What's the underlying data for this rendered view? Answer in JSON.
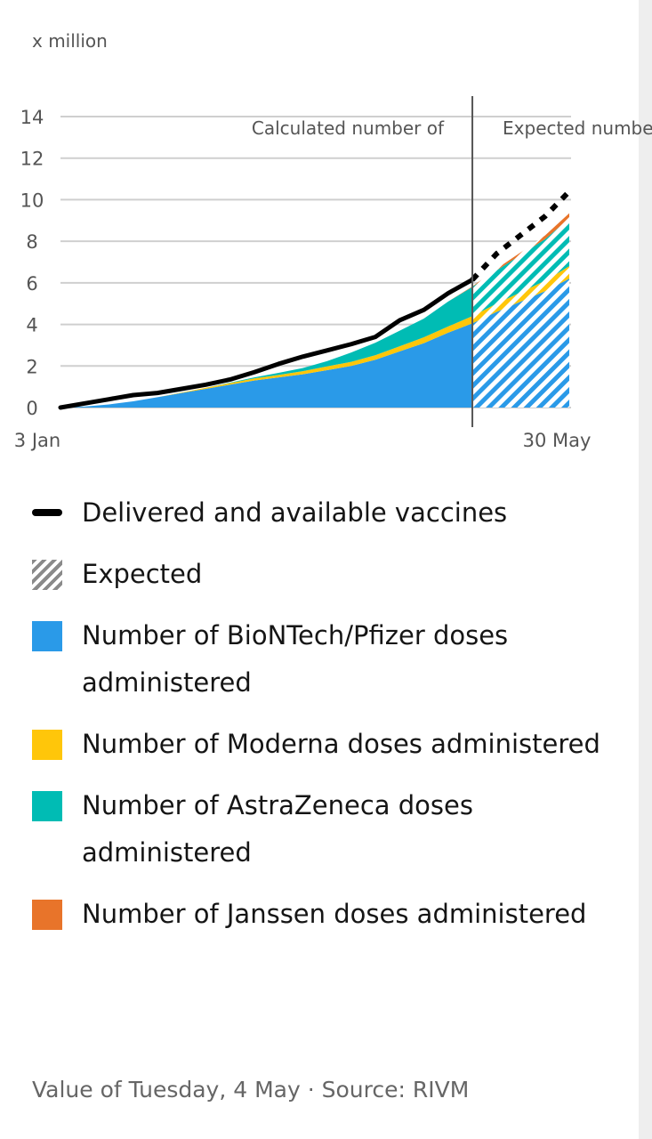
{
  "unit_label": "x million",
  "footer": "Value of Tuesday, 4 May · Source: RIVM",
  "legend": [
    {
      "label": "Delivered and available vaccines",
      "kind": "line",
      "color": "#000000",
      "icon": "line-icon"
    },
    {
      "label": "Expected",
      "kind": "hatch",
      "color": "#8a8a8a",
      "icon": "hatch-icon"
    },
    {
      "label": "Number of BioNTech/Pfizer doses administered",
      "kind": "fill",
      "color": "#2a9ae8",
      "icon": "square-icon"
    },
    {
      "label": "Number of Moderna doses administered",
      "kind": "fill",
      "color": "#ffc60a",
      "icon": "square-icon"
    },
    {
      "label": "Number of AstraZeneca doses administered",
      "kind": "fill",
      "color": "#00bcb4",
      "icon": "square-icon"
    },
    {
      "label": "Number of Janssen doses administered",
      "kind": "fill",
      "color": "#e8742a",
      "icon": "square-icon"
    }
  ],
  "chart_data": {
    "type": "area",
    "title": "",
    "x": [
      "3 Jan",
      "10 Jan",
      "17 Jan",
      "24 Jan",
      "31 Jan",
      "7 Feb",
      "14 Feb",
      "21 Feb",
      "28 Feb",
      "7 Mar",
      "14 Mar",
      "21 Mar",
      "28 Mar",
      "4 Apr",
      "11 Apr",
      "18 Apr",
      "25 Apr",
      "2 May",
      "9 May",
      "16 May",
      "23 May",
      "30 May"
    ],
    "x_tick_labels": [
      "3 Jan",
      "30 May"
    ],
    "ylabel": "x million",
    "ylim": [
      0,
      14
    ],
    "yticks": [
      0,
      2,
      4,
      6,
      8,
      10,
      12,
      14
    ],
    "grid": true,
    "stacked": true,
    "expected_from": "2 May",
    "annotations": [
      "Calculated number of",
      "Expected number"
    ],
    "series": [
      {
        "name": "Number of BioNTech/Pfizer doses administered",
        "color": "#2a9ae8",
        "values": [
          0.0,
          0.05,
          0.15,
          0.3,
          0.5,
          0.7,
          0.9,
          1.1,
          1.3,
          1.45,
          1.6,
          1.8,
          2.0,
          2.3,
          2.7,
          3.1,
          3.6,
          4.05,
          4.6,
          5.1,
          5.6,
          6.2
        ]
      },
      {
        "name": "Number of Moderna doses administered",
        "color": "#ffc60a",
        "values": [
          0.0,
          0.0,
          0.0,
          0.0,
          0.0,
          0.02,
          0.05,
          0.08,
          0.1,
          0.12,
          0.15,
          0.18,
          0.2,
          0.22,
          0.25,
          0.28,
          0.3,
          0.35,
          0.4,
          0.45,
          0.5,
          0.6
        ]
      },
      {
        "name": "Number of AstraZeneca doses administered",
        "color": "#00bcb4",
        "values": [
          0.0,
          0.0,
          0.0,
          0.0,
          0.0,
          0.0,
          0.0,
          0.02,
          0.05,
          0.1,
          0.15,
          0.25,
          0.45,
          0.6,
          0.75,
          0.9,
          1.2,
          1.4,
          1.6,
          1.8,
          2.0,
          2.3
        ]
      },
      {
        "name": "Number of Janssen doses administered",
        "color": "#e8742a",
        "values": [
          0,
          0,
          0,
          0,
          0,
          0,
          0,
          0,
          0,
          0,
          0,
          0,
          0,
          0,
          0,
          0,
          0,
          0.03,
          0.08,
          0.12,
          0.18,
          0.25
        ]
      },
      {
        "name": "Delivered and available vaccines",
        "color": "#000000",
        "kind": "line",
        "values": [
          0.0,
          0.2,
          0.4,
          0.6,
          0.7,
          0.9,
          1.1,
          1.35,
          1.7,
          2.1,
          2.45,
          2.75,
          3.05,
          3.4,
          4.2,
          4.7,
          5.5,
          6.15,
          7.4,
          8.3,
          9.2,
          10.4
        ]
      }
    ]
  }
}
